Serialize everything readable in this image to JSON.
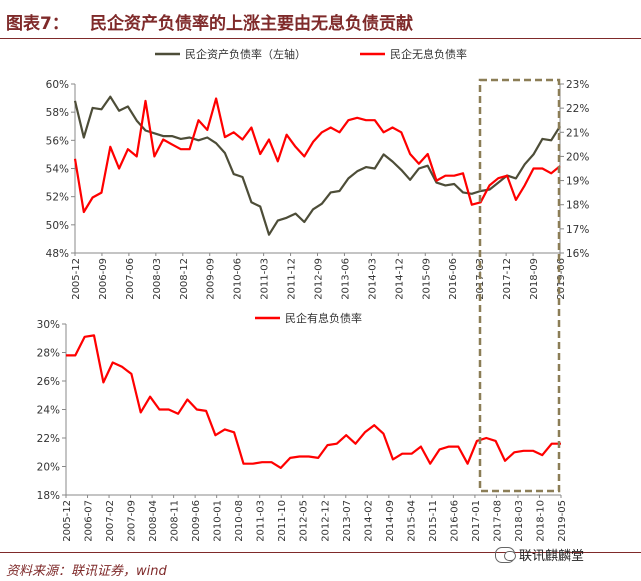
{
  "header": {
    "figure_label": "图表7：",
    "title": "民企资产负债率的上涨主要由无息负债贡献"
  },
  "footer": {
    "source": "资料来源：联讯证券，wind",
    "watermark": "联讯麒麟堂"
  },
  "colors": {
    "asset": "#4d4d38",
    "red": "#ff0000",
    "highlight": "#8b7d56",
    "title": "#7f2a2a"
  },
  "chart_data": [
    {
      "type": "line",
      "legend": [
        "民企资产负债率（左轴）",
        "民企无息负债率"
      ],
      "legend_position": "top",
      "x_labels": [
        "2005-12",
        "2006-09",
        "2007-06",
        "2008-03",
        "2008-12",
        "2009-09",
        "2010-06",
        "2011-03",
        "2011-12",
        "2012-09",
        "2013-06",
        "2014-03",
        "2014-12",
        "2015-09",
        "2016-06",
        "2017-03",
        "2017-12",
        "2018-09",
        "2019-06"
      ],
      "y_left": {
        "ticks": [
          "48%",
          "50%",
          "52%",
          "54%",
          "56%",
          "58%",
          "60%"
        ],
        "ylim": [
          48,
          60
        ]
      },
      "y_right": {
        "ticks": [
          "16%",
          "17%",
          "18%",
          "19%",
          "20%",
          "21%",
          "22%",
          "23%"
        ],
        "ylim": [
          16,
          23
        ]
      },
      "series": [
        {
          "name": "民企资产负债率（左轴）",
          "axis": "left",
          "color": "#4d4d38",
          "values": [
            58.8,
            56.2,
            58.3,
            58.2,
            59.1,
            58.1,
            58.4,
            57.4,
            56.7,
            56.5,
            56.3,
            56.3,
            56.1,
            56.2,
            56.0,
            56.2,
            55.8,
            55.1,
            53.6,
            53.4,
            51.6,
            51.3,
            49.3,
            50.3,
            50.5,
            50.8,
            50.2,
            51.1,
            51.5,
            52.3,
            52.4,
            53.3,
            53.8,
            54.1,
            54.0,
            55.0,
            54.5,
            53.9,
            53.2,
            54.0,
            54.2,
            53.0,
            52.8,
            52.9,
            52.3,
            52.2,
            52.4,
            52.5,
            53.0,
            53.5,
            53.3,
            54.3,
            55.0,
            56.1,
            56.0,
            57.0
          ]
        },
        {
          "name": "民企无息负债率",
          "axis": "right",
          "color": "#ff0000",
          "values": [
            19.9,
            17.7,
            18.3,
            18.5,
            20.4,
            19.5,
            20.3,
            20.0,
            22.3,
            20.0,
            20.7,
            20.5,
            20.3,
            20.3,
            21.5,
            21.1,
            22.4,
            20.8,
            21.0,
            20.7,
            21.2,
            20.1,
            20.7,
            19.8,
            20.9,
            20.4,
            20.0,
            20.6,
            21.0,
            21.2,
            21.0,
            21.5,
            21.6,
            21.5,
            21.5,
            21.0,
            21.2,
            21.0,
            20.1,
            19.7,
            20.1,
            19.0,
            19.2,
            19.2,
            19.3,
            18.0,
            18.1,
            18.8,
            19.1,
            19.2,
            18.2,
            18.8,
            19.5,
            19.5,
            19.3,
            19.6
          ]
        }
      ],
      "annotation": "dashed highlight box from 2017-03 to 2019-06"
    },
    {
      "type": "line",
      "legend": [
        "民企有息负债率"
      ],
      "legend_position": "top",
      "x_labels": [
        "2005-12",
        "2006-07",
        "2007-02",
        "2007-09",
        "2008-04",
        "2008-11",
        "2009-06",
        "2010-01",
        "2010-08",
        "2011-03",
        "2011-10",
        "2012-05",
        "2012-12",
        "2013-07",
        "2014-02",
        "2014-09",
        "2015-04",
        "2015-11",
        "2016-06",
        "2017-01",
        "2017-08",
        "2018-03",
        "2018-10",
        "2019-05"
      ],
      "y_left": {
        "ticks": [
          "18%",
          "20%",
          "22%",
          "24%",
          "26%",
          "28%",
          "30%"
        ],
        "ylim": [
          18,
          30
        ]
      },
      "series": [
        {
          "name": "民企有息负债率",
          "axis": "left",
          "color": "#ff0000",
          "values": [
            27.8,
            27.8,
            29.1,
            29.2,
            25.9,
            27.3,
            27.0,
            26.5,
            23.8,
            24.9,
            24.0,
            24.0,
            23.7,
            24.7,
            24.0,
            23.9,
            22.2,
            22.6,
            22.4,
            20.2,
            20.2,
            20.3,
            20.3,
            19.9,
            20.6,
            20.7,
            20.7,
            20.6,
            21.5,
            21.6,
            22.2,
            21.6,
            22.4,
            22.9,
            22.3,
            20.5,
            20.9,
            20.9,
            21.4,
            20.2,
            21.2,
            21.4,
            21.4,
            20.2,
            21.8,
            22.0,
            21.8,
            20.4,
            21.0,
            21.1,
            21.1,
            20.8,
            21.6,
            21.6
          ]
        }
      ],
      "annotation": "dashed highlight box from 2017-03 to 2019-06"
    }
  ]
}
